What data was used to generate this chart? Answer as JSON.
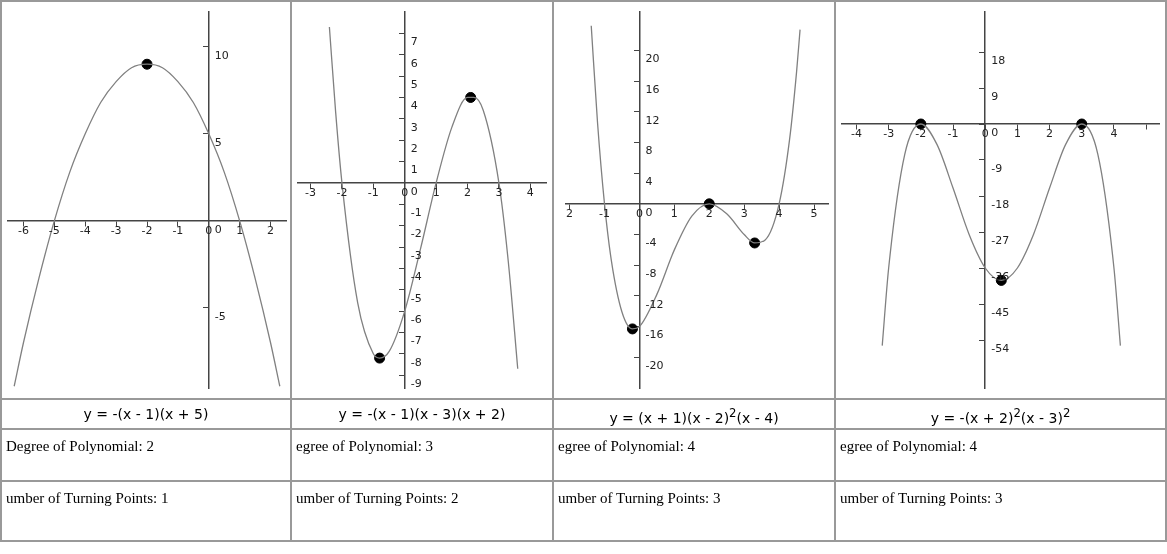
{
  "chart_data": [
    {
      "type": "line",
      "grid": false,
      "legend": false,
      "xlim": [
        -6.5,
        2.5
      ],
      "ylim": [
        -9.6,
        12
      ],
      "xticks": [
        -6,
        -5,
        -4,
        -3,
        -2,
        -1,
        0,
        1,
        2
      ],
      "yticks": [
        -5,
        0,
        5,
        10
      ],
      "series": [
        {
          "type": "line",
          "color": "#808080",
          "marker": "none",
          "x": [
            -6.3,
            -6,
            -5.5,
            -5,
            -4.5,
            -4,
            -3.5,
            -3,
            -2.5,
            -2,
            -1.5,
            -1,
            -0.5,
            0,
            0.5,
            1,
            1.5,
            2,
            2.3
          ],
          "values": [
            -9.5,
            -7,
            -3.3,
            0,
            2.8,
            5,
            6.8,
            8,
            8.8,
            9,
            8.8,
            8,
            6.8,
            5,
            2.8,
            0,
            -3.3,
            -7,
            -9.5
          ]
        },
        {
          "type": "scatter",
          "color": "#000000",
          "marker": "circle",
          "x": [
            -2
          ],
          "values": [
            9
          ]
        }
      ],
      "annotations": [
        "y = -(x - 1)(x + 5)",
        "Degree of Polynomial:  2",
        "umber of Turning Points:  1"
      ]
    },
    {
      "type": "line",
      "grid": false,
      "legend": false,
      "xlim": [
        -3.4,
        4.5
      ],
      "ylim": [
        -9.6,
        8
      ],
      "xticks": [
        -3,
        -2,
        -1,
        0,
        1,
        2,
        3,
        4
      ],
      "yticks": [
        -9,
        -8,
        -7,
        -6,
        -5,
        -4,
        -3,
        -2,
        -1,
        0,
        1,
        2,
        3,
        4,
        5,
        6,
        7
      ],
      "series": [
        {
          "type": "line",
          "color": "#808080",
          "marker": "none",
          "x": [
            -2.4,
            -2.2,
            -2,
            -1.5,
            -1,
            -0.8,
            -0.5,
            0,
            0.5,
            1,
            1.5,
            2,
            2.2,
            2.5,
            3,
            3.3,
            3.6
          ],
          "values": [
            7.3,
            3.3,
            0,
            -5.6,
            -8,
            -8.2,
            -7.9,
            -6,
            -3.1,
            0,
            2.6,
            4,
            4,
            3.4,
            0,
            -3.7,
            -8.7
          ]
        },
        {
          "type": "scatter",
          "color": "#000000",
          "marker": "circle",
          "x": [
            -0.8,
            2.1
          ],
          "values": [
            -8.2,
            4
          ]
        }
      ],
      "annotations": [
        "y = -(x - 1)(x - 3)(x + 2)",
        "egree of Polynomial:  3",
        "umber of Turning Points:  2"
      ]
    },
    {
      "type": "line",
      "grid": false,
      "legend": false,
      "xlim": [
        -2.1,
        5.4
      ],
      "ylim": [
        -24,
        25
      ],
      "xticks": [
        {
          "value": -2,
          "label": "2"
        },
        -1,
        0,
        1,
        2,
        3,
        4,
        5
      ],
      "yticks": [
        -20,
        -16,
        -12,
        -8,
        -4,
        0,
        4,
        8,
        12,
        16,
        20
      ],
      "series": [
        {
          "type": "line",
          "color": "#808080",
          "marker": "none",
          "x": [
            -1.38,
            -1.2,
            -1,
            -0.8,
            -0.5,
            -0.2,
            0,
            0.5,
            1,
            1.5,
            2,
            2.5,
            3,
            3.3,
            3.6,
            4,
            4.3,
            4.5,
            4.6
          ],
          "values": [
            23.2,
            10.6,
            0,
            -7.5,
            -14.1,
            -16.3,
            -16,
            -11.8,
            -6,
            -1.6,
            0,
            -1.3,
            -4,
            -5.1,
            -4.7,
            0,
            8.4,
            17.2,
            22.7
          ]
        },
        {
          "type": "scatter",
          "color": "#000000",
          "marker": "circle",
          "x": [
            -0.2,
            2,
            3.3
          ],
          "values": [
            -16.3,
            0,
            -5.1
          ]
        }
      ],
      "annotations": [
        "y = (x + 1)(x - 2)$^{2}$(x - 4)",
        "egree of Polynomial:  4",
        "umber of Turning Points:  3"
      ]
    },
    {
      "type": "line",
      "grid": false,
      "legend": false,
      "xlim": [
        -4.45,
        5.4
      ],
      "ylim": [
        -66,
        28
      ],
      "xticks": [
        -4,
        -3,
        -2,
        -1,
        0,
        1,
        2,
        3,
        4,
        {
          "value": 5,
          "label": null
        }
      ],
      "yticks": [
        -54,
        -45,
        -36,
        -27,
        -18,
        -9,
        0,
        9,
        18
      ],
      "series": [
        {
          "type": "line",
          "color": "#808080",
          "marker": "none",
          "x": [
            -3.2,
            -3,
            -2.5,
            -2,
            -1.5,
            -1,
            -0.5,
            0,
            0.5,
            1,
            1.5,
            2,
            2.5,
            3,
            3.5,
            4,
            4.2
          ],
          "values": [
            -55.4,
            -36,
            -7.6,
            0,
            -5.1,
            -16,
            -27.6,
            -36,
            -39.1,
            -36,
            -27.6,
            -16,
            -5.1,
            0,
            -7.6,
            -36,
            -55.4
          ]
        },
        {
          "type": "scatter",
          "color": "#000000",
          "marker": "circle",
          "x": [
            -2,
            0.5,
            3
          ],
          "values": [
            0,
            -39.1,
            0
          ]
        }
      ],
      "annotations": [
        "y = -(x + 2)$^{2}$(x - 3)$^{2}$",
        "egree of Polynomial:  4",
        "umber of Turning Points:  3"
      ]
    }
  ]
}
